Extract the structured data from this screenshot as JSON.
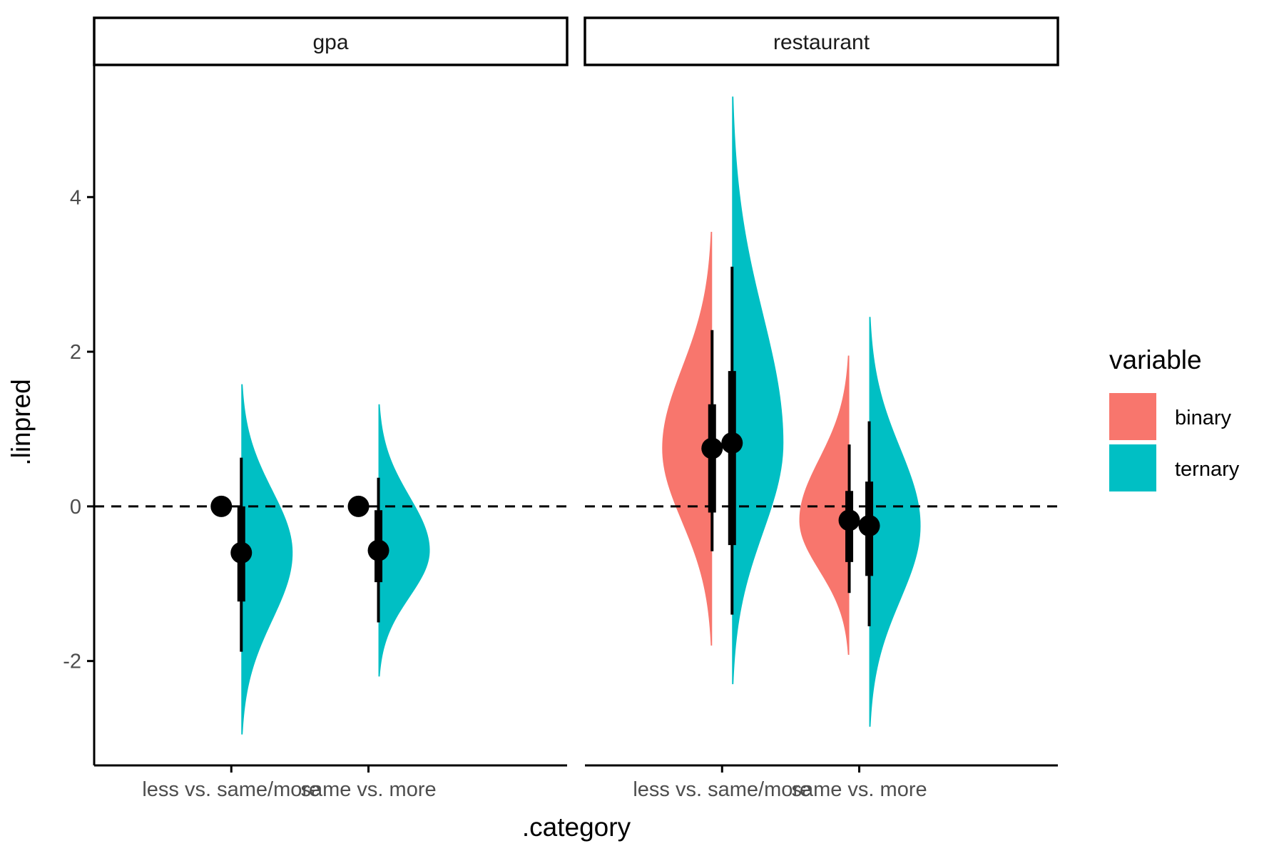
{
  "chart_data": {
    "type": "halfeye",
    "xlabel": ".category",
    "ylabel": ".linpred",
    "ylim": [
      -3.35,
      5.7
    ],
    "yticks": [
      -2,
      0,
      2,
      4
    ],
    "reference_line": {
      "y": 0,
      "style": "dashed"
    },
    "categories": [
      "less vs. same/more",
      "same vs. more"
    ],
    "legend": {
      "title": "variable",
      "position": "right",
      "entries": [
        {
          "name": "binary",
          "color": "#F8766D"
        },
        {
          "name": "ternary",
          "color": "#00BFC4"
        }
      ]
    },
    "panels": [
      {
        "label": "gpa",
        "estimates": [
          {
            "category": "less vs. same/more",
            "variable": "binary",
            "point": 0,
            "interval_66": [
              0,
              0
            ],
            "interval_95": [
              0,
              0
            ],
            "range": null
          },
          {
            "category": "less vs. same/more",
            "variable": "ternary",
            "point": -0.6,
            "interval_66": [
              -1.23,
              0.0
            ],
            "interval_95": [
              -1.88,
              0.63
            ],
            "range": [
              -2.95,
              1.58
            ]
          },
          {
            "category": "same vs. more",
            "variable": "binary",
            "point": 0,
            "interval_66": [
              0,
              0
            ],
            "interval_95": [
              0,
              0
            ],
            "range": null
          },
          {
            "category": "same vs. more",
            "variable": "ternary",
            "point": -0.57,
            "interval_66": [
              -0.98,
              -0.05
            ],
            "interval_95": [
              -1.5,
              0.37
            ],
            "range": [
              -2.2,
              1.32
            ]
          }
        ]
      },
      {
        "label": "restaurant",
        "estimates": [
          {
            "category": "less vs. same/more",
            "variable": "binary",
            "point": 0.75,
            "interval_66": [
              -0.08,
              1.32
            ],
            "interval_95": [
              -0.58,
              2.28
            ],
            "range": [
              -1.8,
              3.55
            ]
          },
          {
            "category": "less vs. same/more",
            "variable": "ternary",
            "point": 0.82,
            "interval_66": [
              -0.5,
              1.75
            ],
            "interval_95": [
              -1.4,
              3.1
            ],
            "range": [
              -2.3,
              5.3
            ]
          },
          {
            "category": "same vs. more",
            "variable": "binary",
            "point": -0.18,
            "interval_66": [
              -0.72,
              0.2
            ],
            "interval_95": [
              -1.12,
              0.8
            ],
            "range": [
              -1.92,
              1.95
            ]
          },
          {
            "category": "same vs. more",
            "variable": "ternary",
            "point": -0.25,
            "interval_66": [
              -0.9,
              0.32
            ],
            "interval_95": [
              -1.55,
              1.1
            ],
            "range": [
              -2.85,
              2.45
            ]
          }
        ]
      }
    ]
  }
}
